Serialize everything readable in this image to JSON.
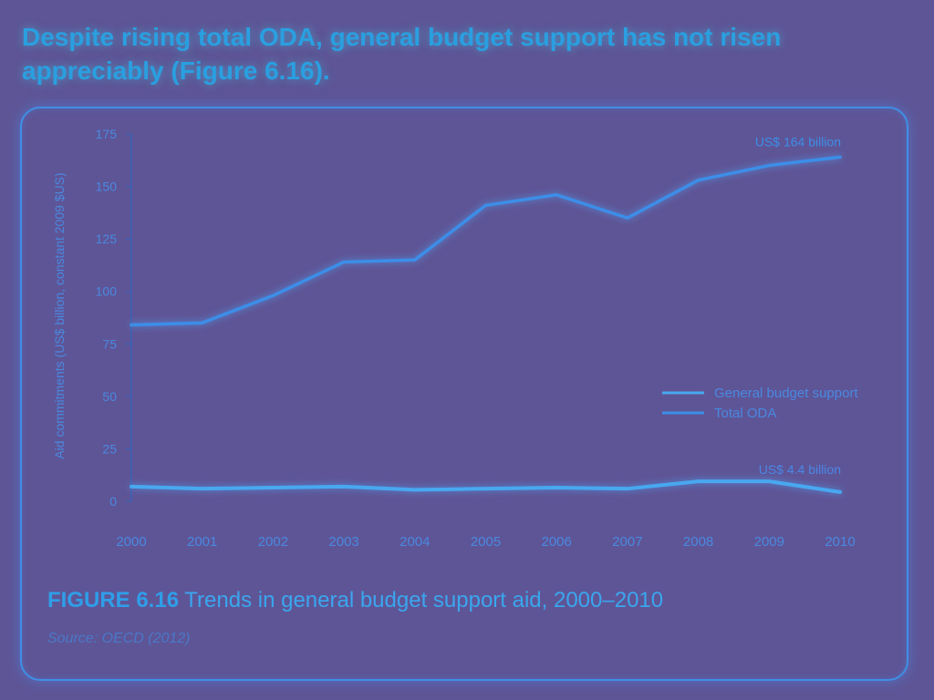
{
  "headline": "Despite rising total ODA, general budget support has not risen appreciably (Figure 6.16).",
  "caption": {
    "figure_number": "FIGURE 6.16",
    "text": "Trends in general budget support aid, 2000–2010"
  },
  "source": "Source: OECD (2012)",
  "colors": {
    "background": "#5e5596",
    "total_oda": "#3c8ee8",
    "general_budget_support": "#48a8f0",
    "axis_text": "#4a88e0",
    "headline": "#2a9fe0"
  },
  "chart_data": {
    "type": "line",
    "ylabel": "Aid commitments (US$ billion, constant 2009 $US)",
    "xlabel": "",
    "ylim": [
      0,
      175
    ],
    "yticks": [
      0,
      25,
      50,
      75,
      100,
      125,
      150,
      175
    ],
    "grid": false,
    "legend_position": "right",
    "x": [
      2000,
      2001,
      2002,
      2003,
      2004,
      2005,
      2006,
      2007,
      2008,
      2009,
      2010
    ],
    "series": [
      {
        "name": "General budget support",
        "values": [
          7,
          6,
          6.5,
          7,
          5.5,
          6,
          6.5,
          6,
          9.5,
          9.5,
          4.4
        ]
      },
      {
        "name": "Total ODA",
        "values": [
          84,
          85,
          98,
          114,
          115,
          141,
          146,
          135,
          153,
          160,
          164
        ]
      }
    ],
    "annotations": [
      {
        "text": "US$ 164 billion",
        "series": "Total ODA",
        "x": 2010
      },
      {
        "text": "US$ 4.4 billion",
        "series": "General budget support",
        "x": 2010
      }
    ]
  }
}
